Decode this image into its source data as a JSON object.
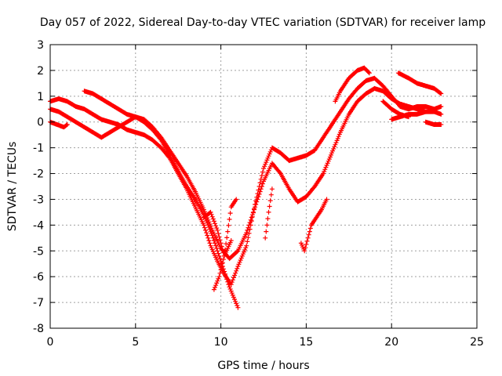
{
  "chart_data": {
    "type": "scatter",
    "title": "Day 057 of 2022, Sidereal Day-to-day VTEC variation (SDTVAR) for receiver lamp",
    "xlabel": "GPS time / hours",
    "ylabel": "SDTVAR / TECUs",
    "xlim": [
      0,
      25
    ],
    "ylim": [
      -8,
      3
    ],
    "xticks": [
      0,
      5,
      10,
      15,
      20,
      25
    ],
    "yticks": [
      -8,
      -7,
      -6,
      -5,
      -4,
      -3,
      -2,
      -1,
      0,
      1,
      2,
      3
    ],
    "grid": true,
    "legend": "none",
    "marker": "plus",
    "color": "#ff0000",
    "series": [
      {
        "x": [
          0.0,
          0.5,
          1.0,
          1.5,
          2.0,
          2.5,
          3.0,
          3.5,
          4.0,
          4.5,
          5.0,
          5.5,
          6.0,
          6.5,
          7.0,
          7.5,
          8.0,
          8.5,
          9.0,
          9.4,
          9.8,
          10.2,
          10.6,
          11.0,
          11.5,
          12.0,
          12.5,
          13.0,
          13.5,
          14.0,
          14.5,
          15.0,
          15.5,
          16.0,
          16.5,
          17.0,
          17.5,
          18.0,
          18.5,
          19.0,
          19.5,
          20.0,
          20.5,
          21.0,
          21.5,
          22.0,
          22.5,
          22.9
        ],
        "y": [
          0.8,
          0.9,
          0.8,
          0.6,
          0.5,
          0.3,
          0.1,
          0.0,
          -0.1,
          -0.3,
          -0.4,
          -0.5,
          -0.7,
          -1.0,
          -1.4,
          -2.0,
          -2.6,
          -3.3,
          -4.0,
          -4.8,
          -5.4,
          -5.9,
          -6.3,
          -5.6,
          -4.8,
          -3.2,
          -1.8,
          -1.0,
          -1.2,
          -1.5,
          -1.4,
          -1.3,
          -1.1,
          -0.6,
          -0.1,
          0.4,
          0.9,
          1.3,
          1.6,
          1.7,
          1.4,
          1.0,
          0.6,
          0.5,
          0.6,
          0.6,
          0.5,
          0.6
        ]
      },
      {
        "x": [
          0.0,
          0.5,
          1.0,
          1.5,
          2.0,
          2.5,
          3.0,
          3.5,
          4.0,
          4.5,
          5.0,
          5.5,
          6.0,
          6.5,
          7.0,
          7.5,
          8.0,
          8.5,
          9.0,
          9.5,
          10.0,
          10.5,
          11.0,
          11.5,
          12.0,
          12.5,
          13.0,
          13.5,
          14.0,
          14.5,
          15.0,
          15.5,
          16.0,
          16.5,
          17.0,
          17.5,
          18.0,
          18.5,
          19.0,
          19.5,
          20.0,
          20.5,
          21.0,
          21.5,
          22.0,
          22.5,
          22.9
        ],
        "y": [
          0.5,
          0.4,
          0.2,
          0.0,
          -0.2,
          -0.4,
          -0.6,
          -0.4,
          -0.2,
          0.0,
          0.2,
          0.1,
          -0.2,
          -0.6,
          -1.1,
          -1.6,
          -2.1,
          -2.7,
          -3.4,
          -4.2,
          -4.9,
          -5.3,
          -5.0,
          -4.3,
          -3.3,
          -2.3,
          -1.6,
          -2.0,
          -2.6,
          -3.1,
          -2.9,
          -2.5,
          -2.0,
          -1.2,
          -0.4,
          0.3,
          0.8,
          1.1,
          1.3,
          1.2,
          0.9,
          0.7,
          0.6,
          0.5,
          0.4,
          0.4,
          0.3
        ]
      },
      {
        "x": [
          2.0,
          2.5,
          3.0,
          3.5,
          4.0,
          4.5,
          5.0,
          5.5,
          6.0,
          6.5,
          7.0,
          7.5,
          8.0,
          8.5,
          9.0,
          9.5,
          10.0,
          10.5,
          11.0
        ],
        "y": [
          1.2,
          1.1,
          0.9,
          0.7,
          0.5,
          0.3,
          0.2,
          0.0,
          -0.3,
          -0.7,
          -1.3,
          -1.9,
          -2.5,
          -3.0,
          -3.6,
          -4.4,
          -5.4,
          -6.4,
          -7.2
        ]
      },
      {
        "x": [
          0.0,
          0.4,
          0.8,
          1.0
        ],
        "y": [
          0.0,
          -0.1,
          -0.2,
          -0.1
        ]
      },
      {
        "x": [
          9.0,
          9.4,
          9.8,
          10.2,
          10.6,
          10.9
        ],
        "y": [
          -3.7,
          -3.5,
          -4.2,
          -5.2,
          -3.3,
          -3.0
        ]
      },
      {
        "x": [
          9.6,
          9.9,
          10.2,
          10.6
        ],
        "y": [
          -6.5,
          -6.0,
          -5.2,
          -4.6
        ]
      },
      {
        "x": [
          12.6,
          12.8,
          13.0
        ],
        "y": [
          -4.5,
          -3.5,
          -2.6
        ]
      },
      {
        "x": [
          14.7,
          14.9,
          15.1,
          15.3,
          15.6,
          15.9,
          16.2
        ],
        "y": [
          -4.7,
          -5.0,
          -4.5,
          -4.0,
          -3.7,
          -3.4,
          -3.0
        ]
      },
      {
        "x": [
          16.7,
          17.0,
          17.5,
          18.0,
          18.4,
          18.7
        ],
        "y": [
          0.8,
          1.2,
          1.7,
          2.0,
          2.1,
          1.9
        ]
      },
      {
        "x": [
          19.5,
          20.0,
          20.5,
          21.0
        ],
        "y": [
          0.8,
          0.5,
          0.3,
          0.2
        ]
      },
      {
        "x": [
          20.4,
          21.0,
          21.5,
          22.0,
          22.5,
          22.9
        ],
        "y": [
          1.9,
          1.7,
          1.5,
          1.4,
          1.3,
          1.1
        ]
      },
      {
        "x": [
          20.0,
          20.5,
          21.0,
          21.5,
          22.0
        ],
        "y": [
          0.1,
          0.2,
          0.3,
          0.3,
          0.4
        ]
      },
      {
        "x": [
          22.0,
          22.5,
          22.9
        ],
        "y": [
          0.0,
          -0.1,
          -0.1
        ]
      }
    ]
  }
}
